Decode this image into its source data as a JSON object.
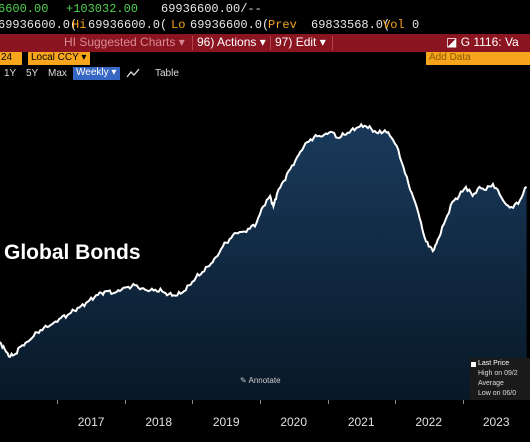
{
  "quote": {
    "last": "6600.00",
    "change": "+103032.00",
    "last_full": "69936600.00/--",
    "hi_label": "Hi",
    "hi_value": "69936600.0(",
    "lo_label": "Lo",
    "lo_value": "69936600.0(",
    "prev_label": "Prev",
    "prev_value": "69833568.0(",
    "vol_label": "Vol",
    "vol_value": "0",
    "row1_left": "69936600.0("
  },
  "toolbar": {
    "suggested": "HI Suggested Charts",
    "suggested_arrow": "▾",
    "actions_key": "96)",
    "actions": "Actions",
    "actions_arrow": "▾",
    "edit_key": "97)",
    "edit": "Edit",
    "edit_arrow": "▾",
    "ticker_icon": "◪",
    "ticker": "G 1116: Va"
  },
  "sub_bar": {
    "date_chip": "24",
    "ccy": "Local CCY",
    "ccy_arrow": "▾",
    "add_data": "Add Data"
  },
  "range_bar": {
    "ranges": [
      "1Y",
      "5Y",
      "Max"
    ],
    "frequency": "Weekly",
    "frequency_arrow": "▾",
    "table": "Table"
  },
  "overlay_title": "Global Bonds",
  "annotate": "Annotate",
  "legend": {
    "items": [
      "Last Price",
      "High on 09/2",
      "Average",
      "Low on 06/0"
    ]
  },
  "colors": {
    "toolbar_bg": "#8a1420",
    "accent_orange": "#f7a51c",
    "line": "#ffffff",
    "fill_top": "#1a3a5c",
    "fill_bottom": "#081827"
  },
  "chart_data": {
    "type": "area",
    "x_labels": [
      "2017",
      "2018",
      "2019",
      "2020",
      "2021",
      "2022",
      "2023"
    ],
    "series": [
      {
        "name": "Last Price",
        "points": [
          [
            2016.15,
            0.39
          ],
          [
            2016.22,
            0.34
          ],
          [
            2016.3,
            0.29
          ],
          [
            2016.38,
            0.31
          ],
          [
            2016.46,
            0.36
          ],
          [
            2016.55,
            0.39
          ],
          [
            2016.65,
            0.43
          ],
          [
            2016.75,
            0.47
          ],
          [
            2016.85,
            0.49
          ],
          [
            2016.95,
            0.52
          ],
          [
            2017.05,
            0.55
          ],
          [
            2017.15,
            0.57
          ],
          [
            2017.25,
            0.6
          ],
          [
            2017.35,
            0.63
          ],
          [
            2017.45,
            0.66
          ],
          [
            2017.55,
            0.69
          ],
          [
            2017.65,
            0.72
          ],
          [
            2017.75,
            0.73
          ],
          [
            2017.85,
            0.72
          ],
          [
            2017.95,
            0.74
          ],
          [
            2018.05,
            0.76
          ],
          [
            2018.15,
            0.77
          ],
          [
            2018.25,
            0.75
          ],
          [
            2018.35,
            0.73
          ],
          [
            2018.45,
            0.74
          ],
          [
            2018.55,
            0.73
          ],
          [
            2018.65,
            0.71
          ],
          [
            2018.75,
            0.7
          ],
          [
            2018.85,
            0.72
          ],
          [
            2018.95,
            0.77
          ],
          [
            2019.05,
            0.82
          ],
          [
            2019.15,
            0.86
          ],
          [
            2019.25,
            0.9
          ],
          [
            2019.35,
            0.96
          ],
          [
            2019.45,
            1.03
          ],
          [
            2019.55,
            1.08
          ],
          [
            2019.65,
            1.12
          ],
          [
            2019.75,
            1.13
          ],
          [
            2019.85,
            1.15
          ],
          [
            2019.95,
            1.19
          ],
          [
            2020.05,
            1.3
          ],
          [
            2020.15,
            1.37
          ],
          [
            2020.2,
            1.3
          ],
          [
            2020.25,
            1.38
          ],
          [
            2020.35,
            1.47
          ],
          [
            2020.45,
            1.55
          ],
          [
            2020.55,
            1.63
          ],
          [
            2020.65,
            1.7
          ],
          [
            2020.75,
            1.75
          ],
          [
            2020.85,
            1.77
          ],
          [
            2020.95,
            1.78
          ],
          [
            2021.05,
            1.8
          ],
          [
            2021.15,
            1.76
          ],
          [
            2021.25,
            1.78
          ],
          [
            2021.35,
            1.81
          ],
          [
            2021.45,
            1.83
          ],
          [
            2021.55,
            1.84
          ],
          [
            2021.65,
            1.82
          ],
          [
            2021.75,
            1.79
          ],
          [
            2021.85,
            1.81
          ],
          [
            2021.95,
            1.76
          ],
          [
            2022.05,
            1.68
          ],
          [
            2022.15,
            1.52
          ],
          [
            2022.25,
            1.39
          ],
          [
            2022.35,
            1.25
          ],
          [
            2022.42,
            1.12
          ],
          [
            2022.5,
            1.03
          ],
          [
            2022.58,
            1.01
          ],
          [
            2022.65,
            1.09
          ],
          [
            2022.75,
            1.21
          ],
          [
            2022.85,
            1.33
          ],
          [
            2022.95,
            1.37
          ],
          [
            2023.05,
            1.43
          ],
          [
            2023.15,
            1.37
          ],
          [
            2023.25,
            1.43
          ],
          [
            2023.35,
            1.41
          ],
          [
            2023.45,
            1.45
          ],
          [
            2023.55,
            1.38
          ],
          [
            2023.65,
            1.31
          ],
          [
            2023.75,
            1.29
          ],
          [
            2023.85,
            1.34
          ],
          [
            2023.95,
            1.43
          ]
        ]
      }
    ],
    "xlim": [
      2016.15,
      2024.0
    ],
    "ylim": [
      0.0,
      2.0
    ],
    "grid": false,
    "legend_position": "bottom-right"
  }
}
